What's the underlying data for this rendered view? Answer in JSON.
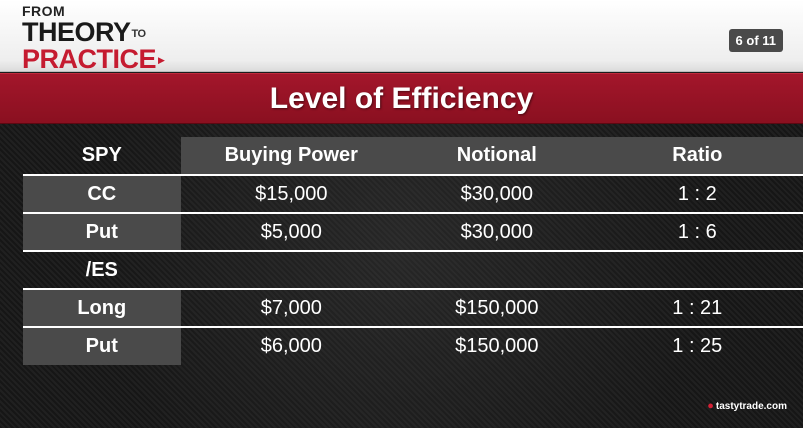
{
  "header": {
    "logo": {
      "line1": "FROM",
      "line2": "THEORY",
      "line2_small": "TO",
      "line3": "PRACTICE"
    },
    "page_counter": "6 of 11"
  },
  "title": "Level of Efficiency",
  "table": {
    "headers": [
      "SPY",
      "Buying Power",
      "Notional",
      "Ratio"
    ],
    "rows": [
      {
        "label": "CC",
        "buying_power": "$15,000",
        "notional": "$30,000",
        "ratio": "1 : 2"
      },
      {
        "label": "Put",
        "buying_power": "$5,000",
        "notional": "$30,000",
        "ratio": "1 : 6"
      },
      {
        "label": "/ES",
        "buying_power": "",
        "notional": "",
        "ratio": ""
      },
      {
        "label": "Long",
        "buying_power": "$7,000",
        "notional": "$150,000",
        "ratio": "1 : 21"
      },
      {
        "label": "Put",
        "buying_power": "$6,000",
        "notional": "$150,000",
        "ratio": "1 : 25"
      }
    ]
  },
  "brand": "tastytrade.com",
  "colors": {
    "accent_red": "#a3162b",
    "cell_gray": "#4a4a4a",
    "background": "#1c1c1c"
  }
}
